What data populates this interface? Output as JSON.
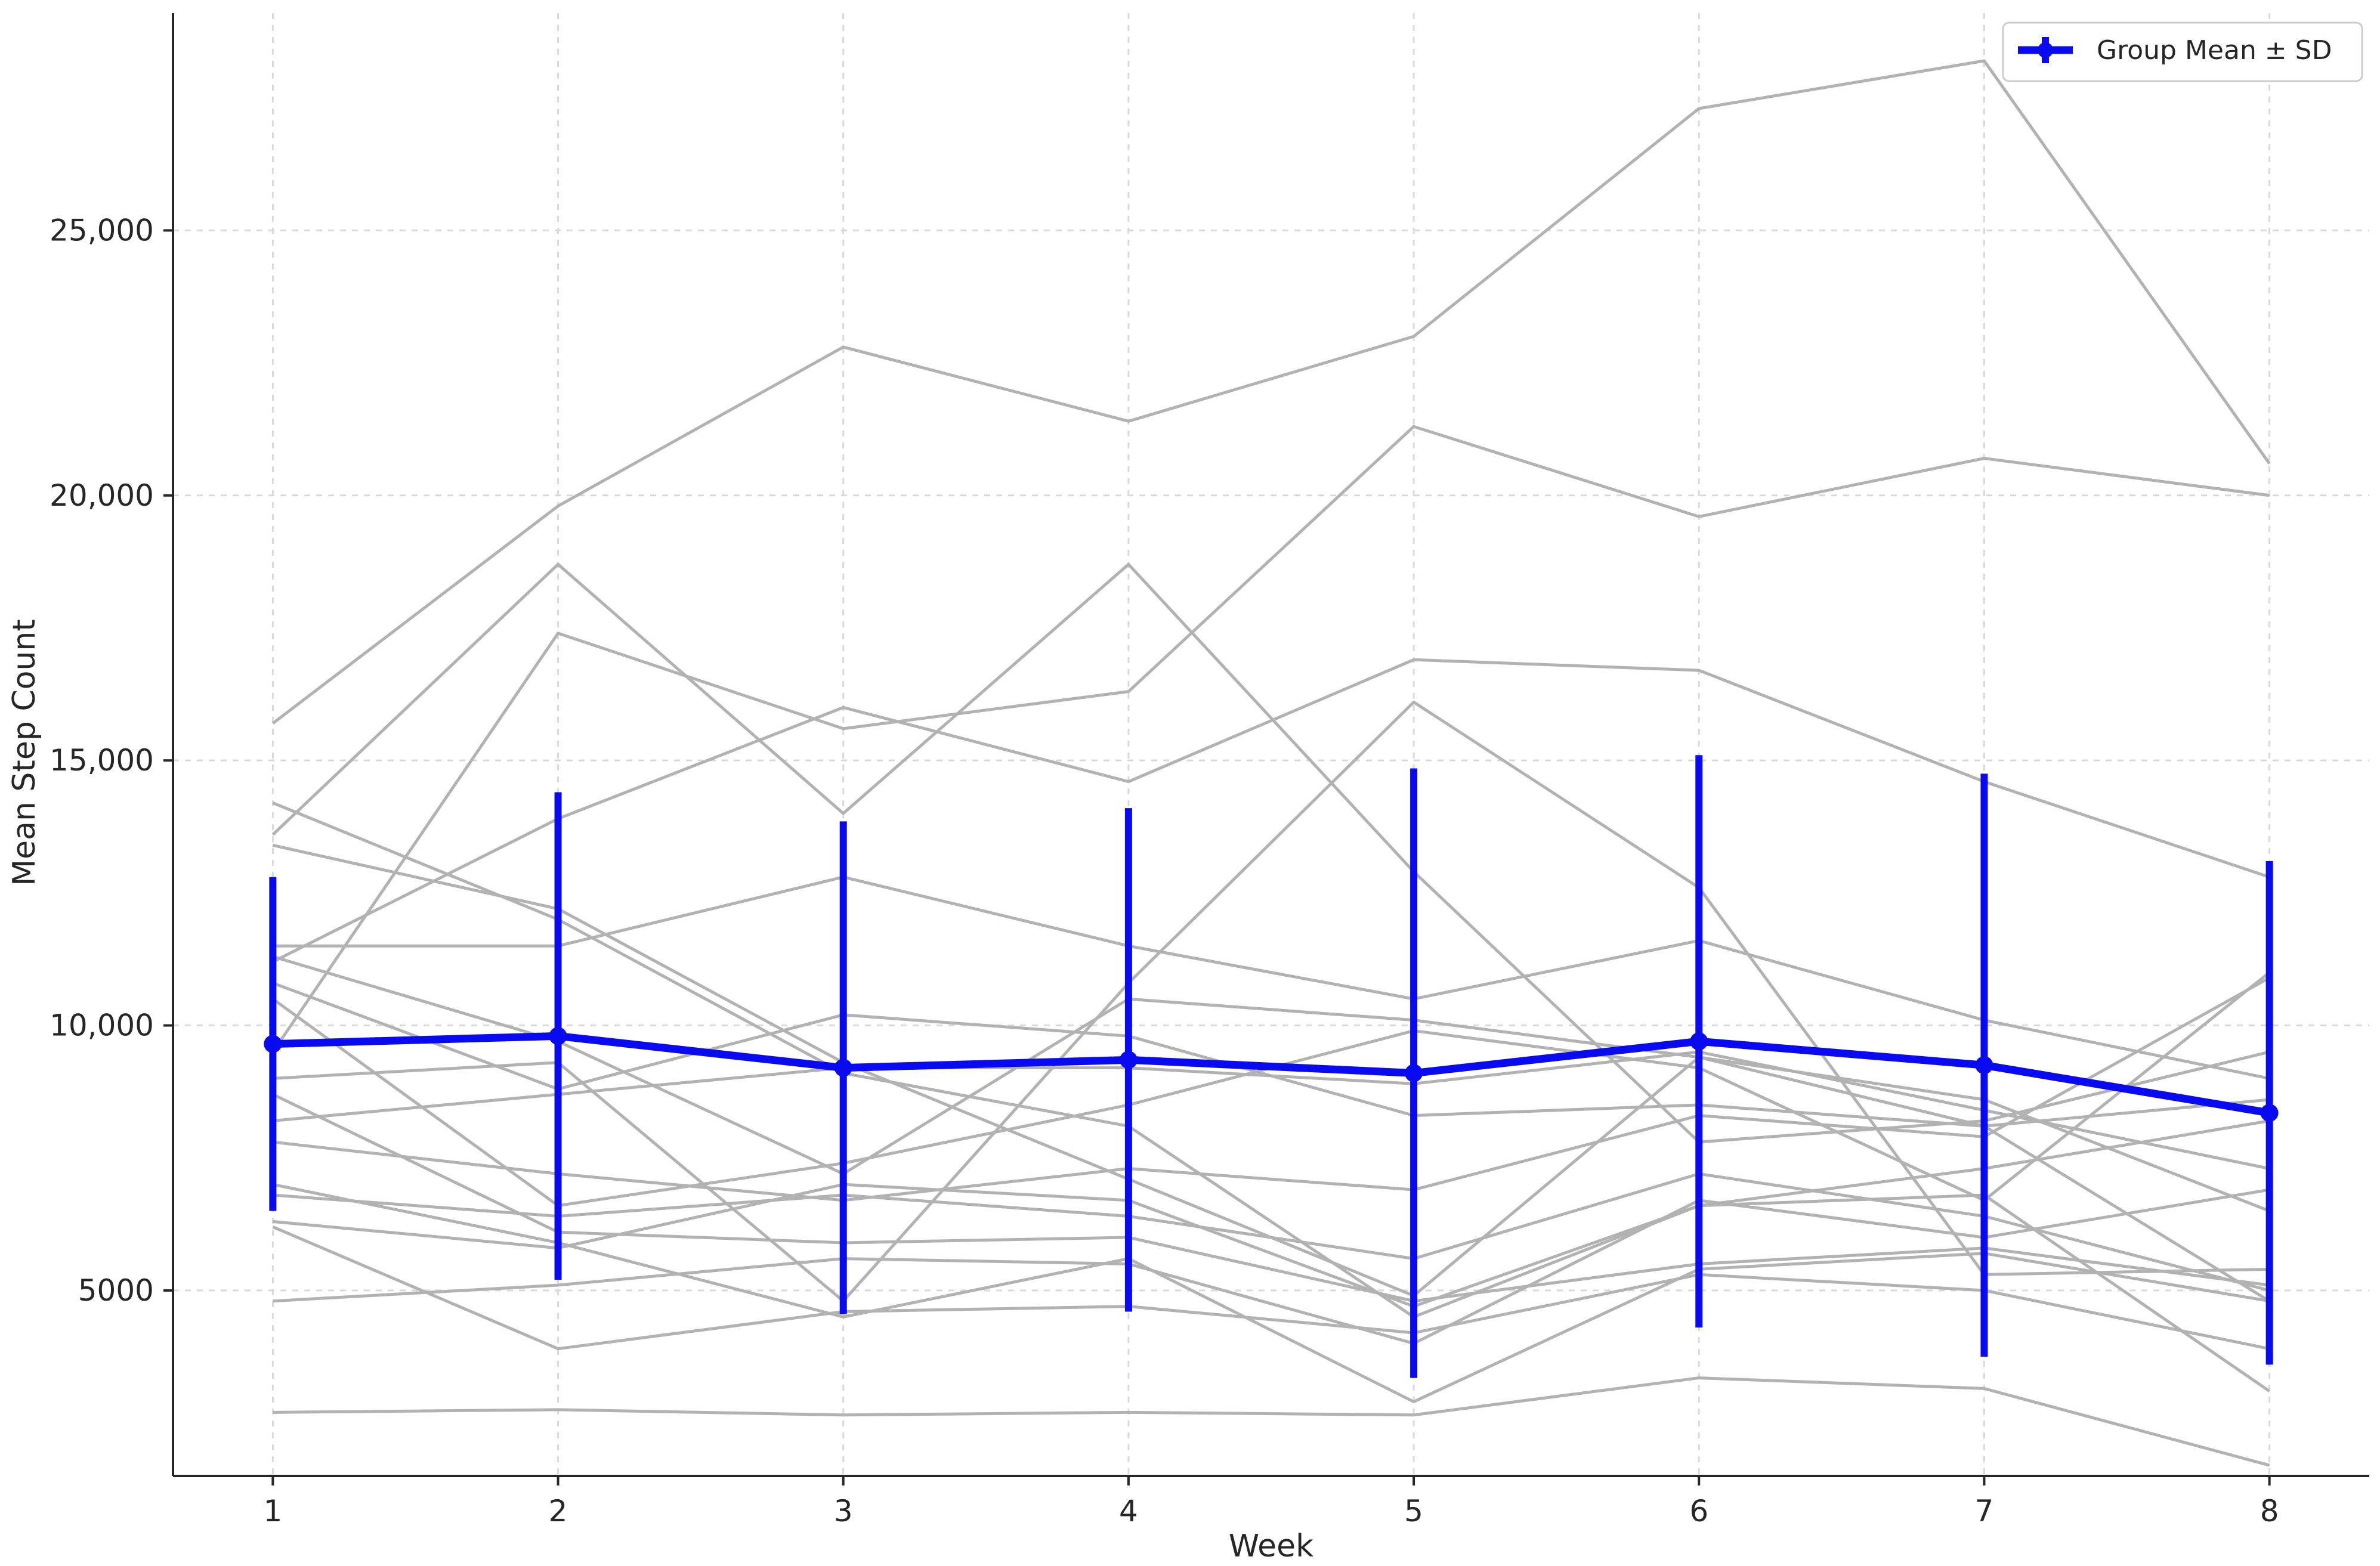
{
  "chart_data": {
    "type": "line",
    "title": "",
    "xlabel": "Week",
    "ylabel": "Mean Step Count",
    "xlim": [
      0.65,
      8.35
    ],
    "ylim": [
      1500,
      29100
    ],
    "x": [
      1,
      2,
      3,
      4,
      5,
      6,
      7,
      8
    ],
    "xticks": [
      1,
      2,
      3,
      4,
      5,
      6,
      7,
      8
    ],
    "xtick_labels": [
      "1",
      "2",
      "3",
      "4",
      "5",
      "6",
      "7",
      "8"
    ],
    "yticks": [
      5000,
      10000,
      15000,
      20000,
      25000
    ],
    "ytick_labels": [
      "5000",
      "10,000",
      "15,000",
      "20,000",
      "25,000"
    ],
    "grid": true,
    "legend": {
      "placement": "top-right",
      "entries": [
        "Group Mean ± SD"
      ]
    },
    "colors": {
      "mean": "#0a0af0",
      "subjects": "#b2b2b2"
    },
    "mean_series": {
      "name": "Group Mean ± SD",
      "values": [
        9650,
        9800,
        9200,
        9350,
        9100,
        9700,
        9250,
        8350
      ],
      "sd": [
        3150,
        4600,
        4650,
        4750,
        5750,
        5400,
        5500,
        4750
      ]
    },
    "subjects": [
      [
        15700,
        19800,
        22800,
        21400,
        23000,
        27300,
        28200,
        20600
      ],
      [
        13600,
        18700,
        14000,
        18700,
        12900,
        7800,
        8200,
        9500
      ],
      [
        9500,
        17400,
        15600,
        16300,
        21300,
        19600,
        20700,
        20000
      ],
      [
        14200,
        12000,
        9100,
        8100,
        4500,
        6600,
        6800,
        3100
      ],
      [
        13400,
        12200,
        9300,
        7100,
        4900,
        9400,
        8100,
        4800
      ],
      [
        11200,
        13900,
        16000,
        14600,
        16900,
        16700,
        14600,
        12800
      ],
      [
        11500,
        11500,
        12800,
        11500,
        10500,
        11600,
        10100,
        9000
      ],
      [
        11300,
        9700,
        7200,
        10500,
        10100,
        9400,
        8600,
        6500
      ],
      [
        10800,
        8800,
        10200,
        9800,
        8300,
        8500,
        8100,
        8600
      ],
      [
        10500,
        6600,
        7400,
        8500,
        9900,
        9200,
        6700,
        11000
      ],
      [
        9000,
        9300,
        4800,
        10800,
        16100,
        12600,
        5300,
        5400
      ],
      [
        8200,
        8700,
        9200,
        9200,
        8900,
        9500,
        8400,
        7300
      ],
      [
        7800,
        7200,
        6700,
        7300,
        6900,
        8300,
        7900,
        10900
      ],
      [
        6800,
        6400,
        6800,
        6400,
        5600,
        7200,
        6400,
        5000
      ],
      [
        6300,
        5800,
        7000,
        6700,
        4700,
        6600,
        7300,
        8200
      ],
      [
        6200,
        3900,
        4600,
        4700,
        4200,
        5300,
        5000,
        3900
      ],
      [
        8700,
        6100,
        5900,
        6000,
        4800,
        5500,
        5800,
        5100
      ],
      [
        4800,
        5100,
        5600,
        5500,
        4000,
        6700,
        6000,
        6900
      ],
      [
        7000,
        5900,
        4500,
        5600,
        2900,
        5400,
        5700,
        4800
      ],
      [
        2700,
        2750,
        2650,
        2700,
        2650,
        3350,
        3150,
        1700
      ]
    ]
  }
}
